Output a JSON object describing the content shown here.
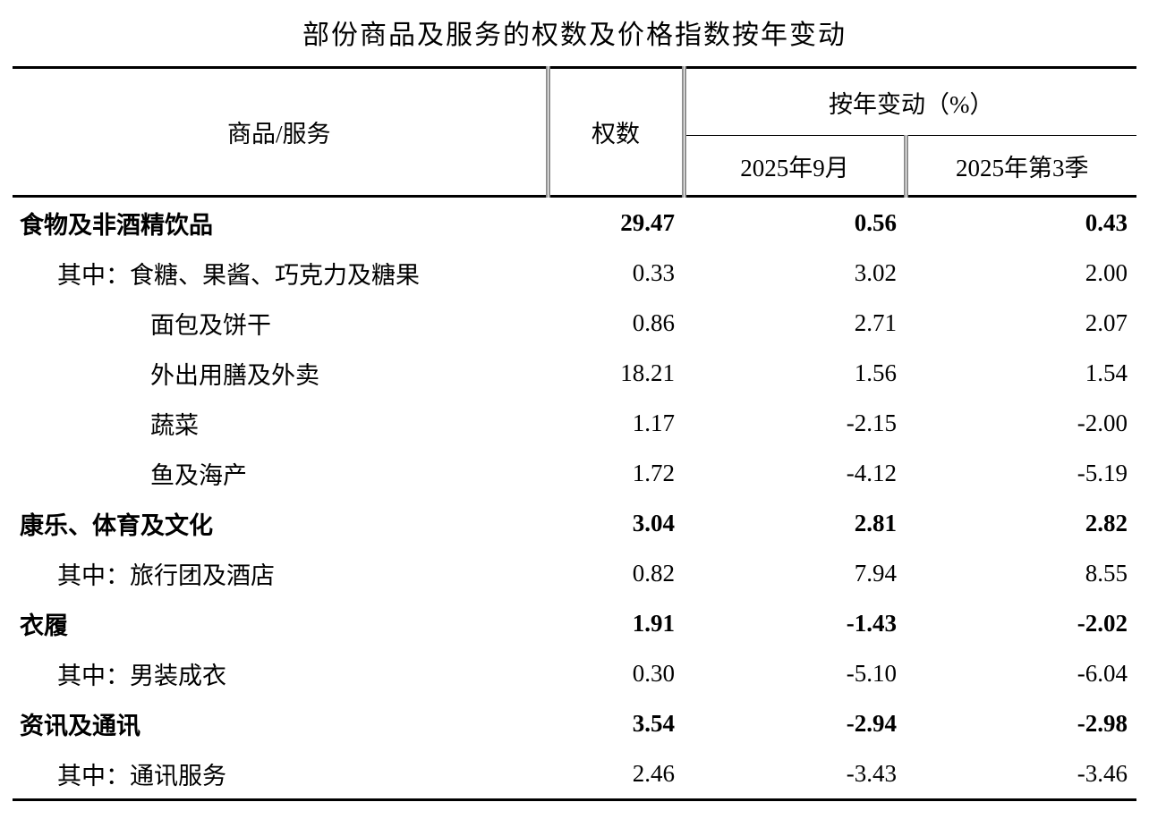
{
  "title": "部份商品及服务的权数及价格指数按年变动",
  "header": {
    "item": "商品/服务",
    "weight": "权数",
    "change_group": "按年变动（%）",
    "sub_month": "2025年9月",
    "sub_quarter": "2025年第3季"
  },
  "chart_data": {
    "type": "table",
    "title": "部份商品及服务的权数及价格指数按年变动",
    "columns": [
      "商品/服务",
      "权数",
      "按年变动（%）2025年9月",
      "按年变动（%）2025年第3季"
    ],
    "rows": [
      {
        "label": "食物及非酒精饮品",
        "weight": "29.47",
        "m": "0.56",
        "q": "0.43",
        "bold": true,
        "indent": 0
      },
      {
        "label": "其中：食糖、果酱、巧克力及糖果",
        "weight": "0.33",
        "m": "3.02",
        "q": "2.00",
        "bold": false,
        "indent": 1
      },
      {
        "label": "面包及饼干",
        "weight": "0.86",
        "m": "2.71",
        "q": "2.07",
        "bold": false,
        "indent": 2
      },
      {
        "label": "外出用膳及外卖",
        "weight": "18.21",
        "m": "1.56",
        "q": "1.54",
        "bold": false,
        "indent": 2
      },
      {
        "label": "蔬菜",
        "weight": "1.17",
        "m": "-2.15",
        "q": "-2.00",
        "bold": false,
        "indent": 2
      },
      {
        "label": "鱼及海产",
        "weight": "1.72",
        "m": "-4.12",
        "q": "-5.19",
        "bold": false,
        "indent": 2
      },
      {
        "label": "康乐、体育及文化",
        "weight": "3.04",
        "m": "2.81",
        "q": "2.82",
        "bold": true,
        "indent": 0
      },
      {
        "label": "其中：旅行团及酒店",
        "weight": "0.82",
        "m": "7.94",
        "q": "8.55",
        "bold": false,
        "indent": 1
      },
      {
        "label": "衣履",
        "weight": "1.91",
        "m": "-1.43",
        "q": "-2.02",
        "bold": true,
        "indent": 0
      },
      {
        "label": "其中：男装成衣",
        "weight": "0.30",
        "m": "-5.10",
        "q": "-6.04",
        "bold": false,
        "indent": 1
      },
      {
        "label": "资讯及通讯",
        "weight": "3.54",
        "m": "-2.94",
        "q": "-2.98",
        "bold": true,
        "indent": 0
      },
      {
        "label": "其中：通讯服务",
        "weight": "2.46",
        "m": "-3.43",
        "q": "-3.46",
        "bold": false,
        "indent": 1
      }
    ]
  }
}
